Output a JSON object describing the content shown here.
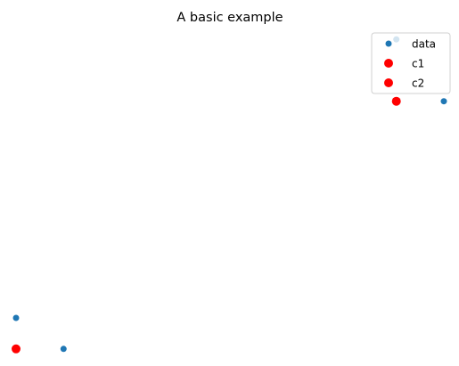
{
  "chart_data": {
    "type": "scatter",
    "title": "A basic example",
    "xlabel": "",
    "ylabel": "",
    "axes_visible": false,
    "grid": false,
    "xlim": [
      -0.015,
      0.915
    ],
    "ylim": [
      -0.015,
      1.015
    ],
    "legend": {
      "placement": "top-right",
      "entries": [
        "data",
        "c1",
        "c2"
      ]
    },
    "series": [
      {
        "name": "data",
        "color": "#1f77b4",
        "marker": "small-circle",
        "points": [
          {
            "x": 0.0,
            "y": 0.1
          },
          {
            "x": 0.1,
            "y": 0.0
          },
          {
            "x": 0.8,
            "y": 1.0
          },
          {
            "x": 0.9,
            "y": 0.8
          }
        ]
      },
      {
        "name": "c1",
        "color": "#ff0000",
        "marker": "large-circle",
        "points": [
          {
            "x": 0.0,
            "y": 0.0
          }
        ]
      },
      {
        "name": "c2",
        "color": "#ff0000",
        "marker": "large-circle",
        "points": [
          {
            "x": 0.8,
            "y": 0.8
          }
        ]
      }
    ]
  }
}
